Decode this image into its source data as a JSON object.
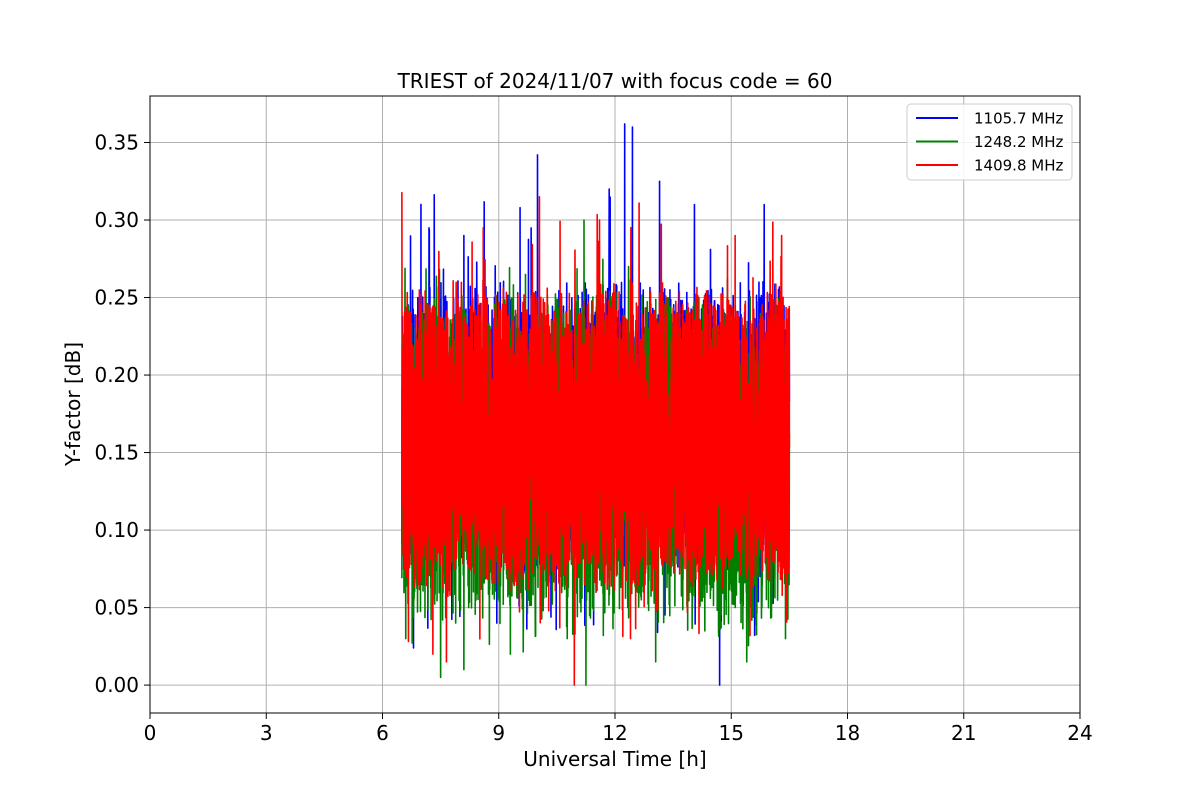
{
  "chart_data": {
    "type": "line",
    "title": "TRIEST of 2024/11/07 with focus code = 60",
    "xlabel": "Universal Time [h]",
    "ylabel": "Y-factor [dB]",
    "xlim": [
      0,
      24
    ],
    "ylim": [
      -0.018,
      0.38
    ],
    "xticks": [
      0,
      3,
      6,
      9,
      12,
      15,
      18,
      21,
      24
    ],
    "xtick_labels": [
      "0",
      "3",
      "6",
      "9",
      "12",
      "15",
      "18",
      "21",
      "24"
    ],
    "yticks": [
      0.0,
      0.05,
      0.1,
      0.15,
      0.2,
      0.25,
      0.3,
      0.35
    ],
    "ytick_labels": [
      "0.00",
      "0.05",
      "0.10",
      "0.15",
      "0.20",
      "0.25",
      "0.30",
      "0.35"
    ],
    "grid": true,
    "legend_position": "top-right",
    "x_range_of_data": [
      6.5,
      16.5
    ],
    "series": [
      {
        "name": "1105.7 MHz",
        "color": "#0000ff",
        "approx_range": [
          0.0,
          0.362
        ],
        "typical_band": [
          0.08,
          0.25
        ],
        "peaks": [
          {
            "x": 10.0,
            "y": 0.342
          },
          {
            "x": 12.25,
            "y": 0.362
          },
          {
            "x": 12.45,
            "y": 0.36
          },
          {
            "x": 9.55,
            "y": 0.308
          },
          {
            "x": 11.85,
            "y": 0.32
          },
          {
            "x": 13.15,
            "y": 0.325
          },
          {
            "x": 14.05,
            "y": 0.31
          },
          {
            "x": 15.85,
            "y": 0.31
          },
          {
            "x": 7.2,
            "y": 0.295
          },
          {
            "x": 8.1,
            "y": 0.29
          }
        ],
        "troughs": [
          {
            "x": 14.7,
            "y": 0.0
          },
          {
            "x": 6.8,
            "y": 0.024
          },
          {
            "x": 8.95,
            "y": 0.04
          }
        ]
      },
      {
        "name": "1248.2 MHz",
        "color": "#008000",
        "approx_range": [
          0.0,
          0.3
        ],
        "typical_band": [
          0.05,
          0.24
        ],
        "peaks": [
          {
            "x": 11.2,
            "y": 0.3
          },
          {
            "x": 12.35,
            "y": 0.27
          },
          {
            "x": 14.9,
            "y": 0.262
          }
        ],
        "troughs": [
          {
            "x": 11.25,
            "y": 0.0
          },
          {
            "x": 7.5,
            "y": 0.005
          },
          {
            "x": 8.1,
            "y": 0.01
          },
          {
            "x": 9.3,
            "y": 0.02
          },
          {
            "x": 13.05,
            "y": 0.015
          },
          {
            "x": 15.4,
            "y": 0.015
          },
          {
            "x": 6.6,
            "y": 0.03
          },
          {
            "x": 16.4,
            "y": 0.03
          }
        ]
      },
      {
        "name": "1409.8 MHz",
        "color": "#ff0000",
        "approx_range": [
          0.0,
          0.352
        ],
        "typical_band": [
          0.07,
          0.25
        ],
        "peaks": [
          {
            "x": 6.5,
            "y": 0.318
          },
          {
            "x": 12.4,
            "y": 0.352
          },
          {
            "x": 10.05,
            "y": 0.315
          },
          {
            "x": 8.6,
            "y": 0.295
          },
          {
            "x": 11.6,
            "y": 0.3
          },
          {
            "x": 15.1,
            "y": 0.29
          },
          {
            "x": 16.3,
            "y": 0.29
          }
        ],
        "troughs": [
          {
            "x": 10.95,
            "y": 0.0
          },
          {
            "x": 7.3,
            "y": 0.02
          },
          {
            "x": 7.65,
            "y": 0.015
          },
          {
            "x": 12.4,
            "y": 0.03
          }
        ]
      }
    ]
  }
}
